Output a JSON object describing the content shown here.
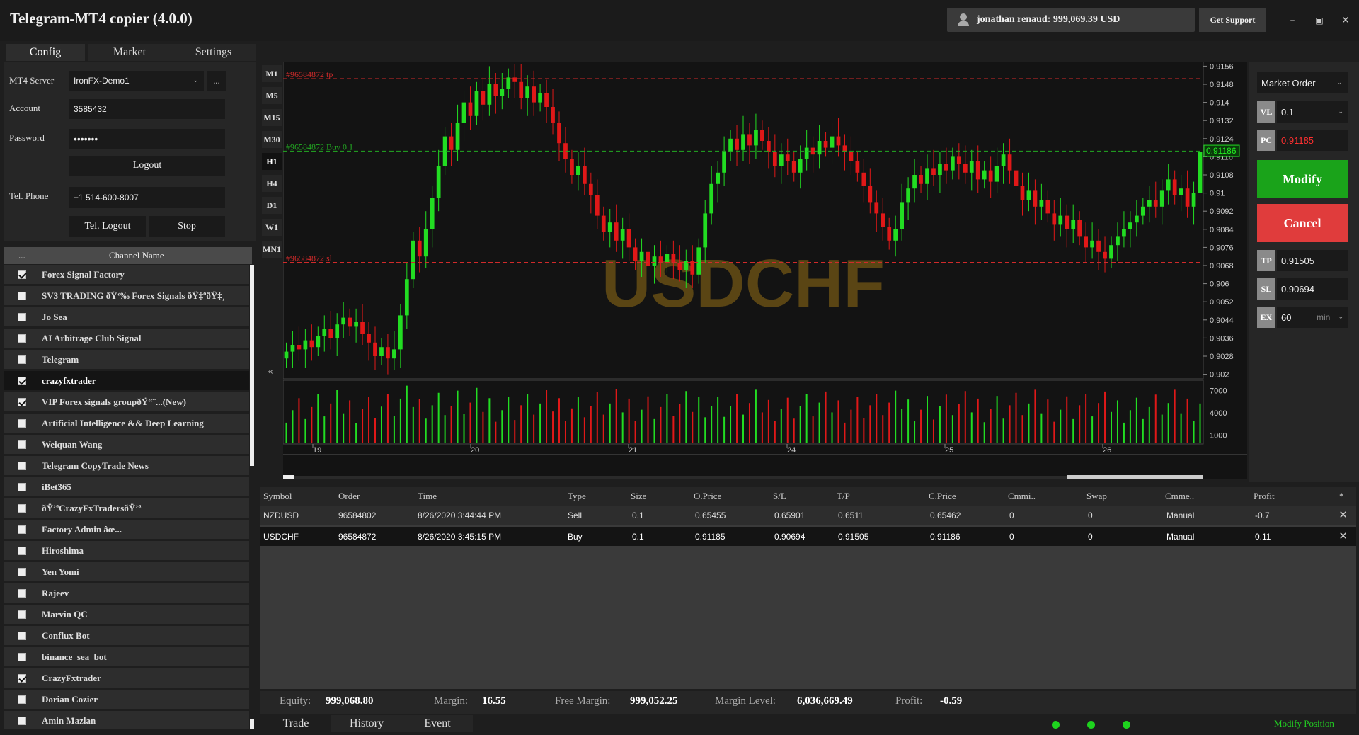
{
  "window": {
    "title": "Telegram-MT4 copier (4.0.0)",
    "account_chip": "jonathan renaud: 999,069.39 USD",
    "support_label": "Get Support",
    "controls": {
      "minimize": "–",
      "restore": "▣",
      "close": "✕"
    }
  },
  "tabs": {
    "config": "Config",
    "market": "Market",
    "settings": "Settings"
  },
  "config": {
    "server_label": "MT4 Server",
    "server_value": "IronFX-Demo1",
    "server_more": "...",
    "account_label": "Account",
    "account_value": "3585432",
    "password_label": "Password",
    "password_value": "•••••••",
    "logout_label": "Logout",
    "phone_label": "Tel. Phone",
    "phone_value": "+1 514-600-8007",
    "tel_logout_label": "Tel. Logout",
    "stop_label": "Stop"
  },
  "channels": {
    "col_check": "...",
    "col_name": "Channel Name",
    "items": [
      {
        "name": "Forex Signal Factory",
        "checked": true
      },
      {
        "name": "SV3 TRADING ðŸ‘‰ Forex Signals ðŸ‡ºðŸ‡¸ ",
        "checked": false
      },
      {
        "name": "Jo Sea",
        "checked": false
      },
      {
        "name": "AI Arbitrage Club Signal",
        "checked": false
      },
      {
        "name": "Telegram",
        "checked": false
      },
      {
        "name": "crazyfxtrader",
        "checked": true,
        "selected": true
      },
      {
        "name": "VIP Forex signals groupðŸ“ˆ...(New)",
        "checked": true
      },
      {
        "name": "Artificial Intelligence && Deep Learning",
        "checked": false
      },
      {
        "name": "Weiquan Wang",
        "checked": false
      },
      {
        "name": "Telegram CopyTrade News",
        "checked": false
      },
      {
        "name": "iBet365",
        "checked": false
      },
      {
        "name": "ðŸ’ªCrazyFxTradersðŸ’ª",
        "checked": false
      },
      {
        "name": "Factory Admin âœ...",
        "checked": false
      },
      {
        "name": "Hiroshima",
        "checked": false
      },
      {
        "name": "Yen Yomi",
        "checked": false
      },
      {
        "name": "Rajeev",
        "checked": false
      },
      {
        "name": "Marvin QC",
        "checked": false
      },
      {
        "name": "Conflux Bot",
        "checked": false
      },
      {
        "name": "binance_sea_bot",
        "checked": false
      },
      {
        "name": "CrazyFxtrader",
        "checked": true
      },
      {
        "name": "Dorian Cozier",
        "checked": false
      },
      {
        "name": "Amin Mazlan",
        "checked": false
      }
    ]
  },
  "timeframes": {
    "items": [
      "M1",
      "M5",
      "M15",
      "M30",
      "H1",
      "H4",
      "D1",
      "W1",
      "MN1"
    ],
    "active": "H1",
    "collapse_icon": "«"
  },
  "chart_data": {
    "type": "candlestick",
    "symbol": "USDCHF",
    "ylim": [
      0.9018,
      0.9158
    ],
    "y_ticks": [
      "0.9156",
      "0.9148",
      "0.914",
      "0.9132",
      "0.9124",
      "0.9116",
      "0.9108",
      "0.91",
      "0.9092",
      "0.9084",
      "0.9076",
      "0.9068",
      "0.906",
      "0.9052",
      "0.9044",
      "0.9036",
      "0.9028",
      "0.902"
    ],
    "x_ticks": [
      "19",
      "20",
      "21",
      "24",
      "25",
      "26"
    ],
    "current_price": "0.91186",
    "lines": [
      {
        "label": "#96584872 tp",
        "price": 0.91505,
        "color": "#d02a2a"
      },
      {
        "label": "#96584872 Buy 0.1",
        "price": 0.91185,
        "color": "#22aa22"
      },
      {
        "label": "#96584872 sl",
        "price": 0.90694,
        "color": "#d02a2a"
      }
    ],
    "volume_ticks": [
      "7000",
      "4000",
      "1000"
    ],
    "volume_max": 8200,
    "closes": [
      0.903,
      0.9033,
      0.9031,
      0.9035,
      0.9032,
      0.9037,
      0.904,
      0.9036,
      0.9042,
      0.9045,
      0.9041,
      0.9043,
      0.9038,
      0.9034,
      0.9028,
      0.9032,
      0.9027,
      0.9031,
      0.9046,
      0.9062,
      0.9079,
      0.9072,
      0.9084,
      0.9098,
      0.9112,
      0.9125,
      0.9119,
      0.9131,
      0.914,
      0.9134,
      0.9145,
      0.9139,
      0.9148,
      0.9143,
      0.9146,
      0.9151,
      0.9149,
      0.9142,
      0.9147,
      0.914,
      0.9144,
      0.9138,
      0.9131,
      0.9122,
      0.9115,
      0.9108,
      0.9112,
      0.9104,
      0.9099,
      0.909,
      0.9083,
      0.9087,
      0.9079,
      0.9084,
      0.9076,
      0.907,
      0.9074,
      0.9068,
      0.9072,
      0.9069,
      0.9073,
      0.9069,
      0.9066,
      0.907,
      0.9064,
      0.9076,
      0.9091,
      0.9104,
      0.9109,
      0.9118,
      0.9124,
      0.9119,
      0.9126,
      0.9121,
      0.9128,
      0.9123,
      0.9118,
      0.9112,
      0.9117,
      0.9114,
      0.9109,
      0.9115,
      0.912,
      0.9117,
      0.9123,
      0.912,
      0.9125,
      0.9121,
      0.9118,
      0.9114,
      0.9109,
      0.9103,
      0.9096,
      0.9091,
      0.9085,
      0.9079,
      0.9084,
      0.9096,
      0.9102,
      0.9108,
      0.9104,
      0.9111,
      0.9108,
      0.9113,
      0.911,
      0.9116,
      0.9113,
      0.9109,
      0.9114,
      0.9106,
      0.911,
      0.9105,
      0.9112,
      0.9117,
      0.911,
      0.9103,
      0.9097,
      0.9101,
      0.9094,
      0.9097,
      0.9091,
      0.9086,
      0.909,
      0.9084,
      0.9088,
      0.9081,
      0.9076,
      0.9079,
      0.9074,
      0.9071,
      0.9077,
      0.9081,
      0.9084,
      0.9087,
      0.909,
      0.9094,
      0.9097,
      0.9094,
      0.9101,
      0.9106,
      0.9099,
      0.9102,
      0.9094,
      0.91,
      0.9118
    ]
  },
  "orders": {
    "type_value": "Market Order",
    "volume": {
      "tag": "VL",
      "value": "0.1"
    },
    "price": {
      "tag": "PC",
      "value": "0.91185"
    },
    "modify_label": "Modify",
    "cancel_label": "Cancel",
    "tp": {
      "tag": "TP",
      "value": "0.91505"
    },
    "sl": {
      "tag": "SL",
      "value": "0.90694"
    },
    "expiry": {
      "tag": "EX",
      "value": "60",
      "unit": "min"
    }
  },
  "trades": {
    "headers": [
      "Symbol",
      "Order",
      "Time",
      "Type",
      "Size",
      "O.Price",
      "S/L",
      "T/P",
      "C.Price",
      "Cmmi..",
      "Swap",
      "Cmme..",
      "Profit",
      "*"
    ],
    "rows": [
      [
        "NZDUSD",
        "96584802",
        "8/26/2020 3:44:44 PM",
        "Sell",
        "0.1",
        "0.65455",
        "0.65901",
        "0.6511",
        "0.65462",
        "0",
        "0",
        "Manual",
        "-0.7"
      ],
      [
        "USDCHF",
        "96584872",
        "8/26/2020 3:45:15 PM",
        "Buy",
        "0.1",
        "0.91185",
        "0.90694",
        "0.91505",
        "0.91186",
        "0",
        "0",
        "Manual",
        "0.11"
      ]
    ]
  },
  "status": {
    "equity_label": "Equity:",
    "equity": "999,068.80",
    "margin_label": "Margin:",
    "margin": "16.55",
    "free_margin_label": "Free Margin:",
    "free_margin": "999,052.25",
    "margin_level_label": "Margin Level:",
    "margin_level": "6,036,669.49",
    "profit_label": "Profit:",
    "profit": "-0.59"
  },
  "bottom_tabs": {
    "trade": "Trade",
    "history": "History",
    "event": "Event"
  },
  "modify_position_label": "Modify Position",
  "colors": {
    "bull": "#22dd22",
    "bear": "#e01818",
    "watermark": "#5a4514"
  }
}
